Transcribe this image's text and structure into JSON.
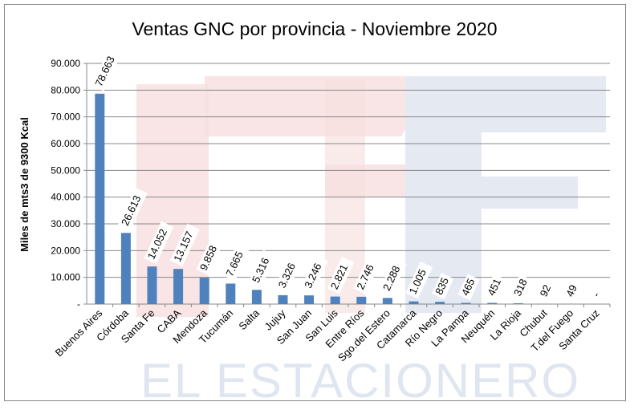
{
  "chart_data": {
    "type": "bar",
    "title": "Ventas GNC por provincia - Noviembre 2020",
    "xlabel": "",
    "ylabel": "Miles de mts3 de 9300 Kcal",
    "ylim": [
      0,
      90000
    ],
    "yticks": [
      0,
      10000,
      20000,
      30000,
      40000,
      50000,
      60000,
      70000,
      80000,
      90000
    ],
    "ytick_labels": [
      "-",
      "10.000",
      "20.000",
      "30.000",
      "40.000",
      "50.000",
      "60.000",
      "70.000",
      "80.000",
      "90.000"
    ],
    "grid": true,
    "legend": "none",
    "bar_color": "#4f81bd",
    "categories": [
      "Buenos Aires",
      "Córdoba",
      "Santa Fe",
      "CABA",
      "Mendoza",
      "Tucumán",
      "Salta",
      "Jujuy",
      "San Juan",
      "San Luis",
      "Entre Ríos",
      "Sgo.del Estero",
      "Catamarca",
      "Río Negro",
      "La Pampa",
      "Neuquén",
      "La Rioja",
      "Chubut",
      "T.del Fuego",
      "Santa Cruz"
    ],
    "values": [
      78663,
      26613,
      14052,
      13157,
      9858,
      7665,
      5316,
      3326,
      3246,
      2821,
      2746,
      2288,
      1005,
      835,
      465,
      451,
      318,
      92,
      49,
      0
    ],
    "data_labels": [
      "78.663",
      "26.613",
      "14.052",
      "13.157",
      "9.858",
      "7.665",
      "5.316",
      "3.326",
      "3.246",
      "2.821",
      "2.746",
      "2.288",
      "1.005",
      "835",
      "465",
      "451",
      "318",
      "92",
      "49",
      "-"
    ]
  },
  "watermark": "EL ESTACIONERO"
}
